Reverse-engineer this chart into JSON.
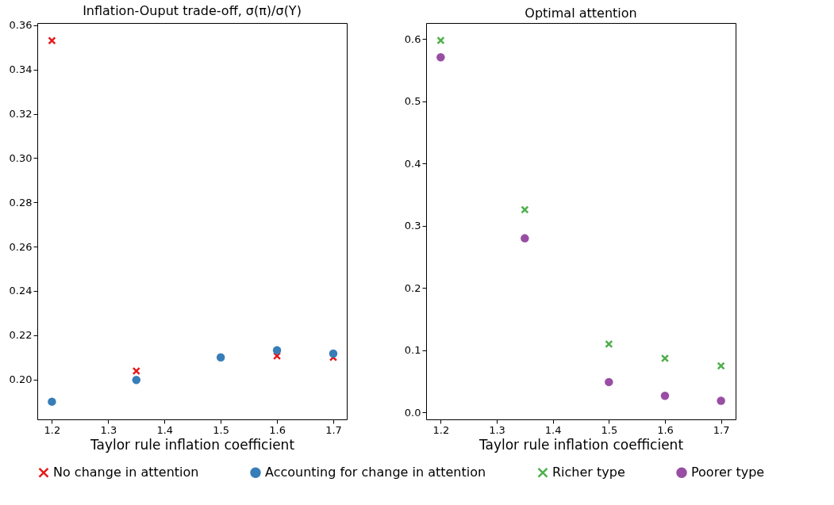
{
  "chart_data": [
    {
      "type": "scatter",
      "title": "Inflation-Ouput trade-off, σ(π)/σ(Y)",
      "xlabel": "Taylor rule inflation coefficient",
      "x": [
        1.2,
        1.35,
        1.5,
        1.6,
        1.7
      ],
      "series": [
        {
          "name": "No change in attention",
          "color": "#e41a1c",
          "marker": "cross",
          "values": [
            0.353,
            0.2038,
            null,
            0.2106,
            0.21
          ]
        },
        {
          "name": "Accounting for change in attention",
          "color": "#377eb8",
          "marker": "circle",
          "values": [
            0.19,
            0.1998,
            0.21,
            0.2132,
            0.2117
          ]
        }
      ],
      "xlim": [
        1.174,
        1.724
      ],
      "xticks": [
        1.2,
        1.3,
        1.4,
        1.5,
        1.6,
        1.7
      ],
      "ylim": [
        0.182,
        0.361
      ],
      "yticks": [
        {
          "value": 0.2,
          "label": "0.20"
        },
        {
          "value": 0.22,
          "label": "0.22"
        },
        {
          "value": 0.24,
          "label": "0.24"
        },
        {
          "value": 0.26,
          "label": "0.26"
        },
        {
          "value": 0.28,
          "label": "0.28"
        },
        {
          "value": 0.3,
          "label": "0.30"
        },
        {
          "value": 0.32,
          "label": "0.32"
        },
        {
          "value": 0.34,
          "label": "0.34"
        },
        {
          "value": 0.36,
          "label": "0.36"
        }
      ],
      "grid": false,
      "legend": "bottom"
    },
    {
      "type": "scatter",
      "title": "Optimal attention",
      "xlabel": "Taylor rule inflation coefficient",
      "x": [
        1.2,
        1.35,
        1.5,
        1.6,
        1.7
      ],
      "series": [
        {
          "name": "Richer type",
          "color": "#4daf4a",
          "marker": "cross",
          "values": [
            0.598,
            0.326,
            0.11,
            0.087,
            0.075
          ]
        },
        {
          "name": "Poorer type",
          "color": "#984ea3",
          "marker": "circle",
          "values": [
            0.571,
            0.28,
            0.049,
            0.027,
            0.019
          ]
        }
      ],
      "xlim": [
        1.174,
        1.726
      ],
      "xticks": [
        1.2,
        1.3,
        1.4,
        1.5,
        1.6,
        1.7
      ],
      "ylim": [
        -0.011,
        0.626
      ],
      "yticks": [
        {
          "value": 0,
          "label": "0.0"
        },
        {
          "value": 0.1,
          "label": "0.1"
        },
        {
          "value": 0.2,
          "label": "0.2"
        },
        {
          "value": 0.3,
          "label": "0.3"
        },
        {
          "value": 0.4,
          "label": "0.4"
        },
        {
          "value": 0.5,
          "label": "0.5"
        },
        {
          "value": 0.6,
          "label": "0.6"
        }
      ],
      "grid": false,
      "legend": "bottom"
    }
  ]
}
